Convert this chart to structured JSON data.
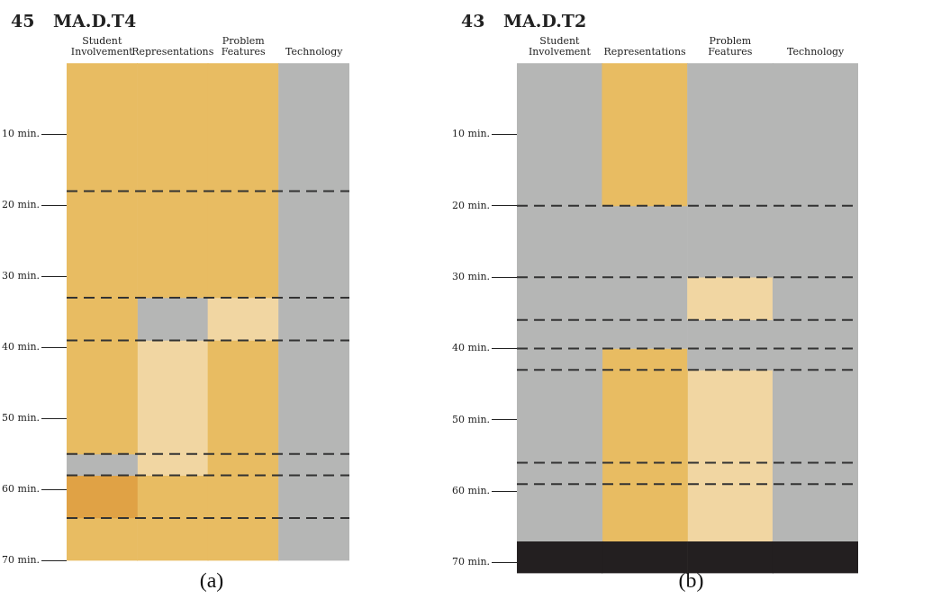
{
  "chart_data": [
    {
      "type": "bar",
      "title": "45 MA.D.T4",
      "stacked": true,
      "categories": [
        "Student Involvement",
        "Representations",
        "Problem Features",
        "Technology"
      ],
      "series": [
        {
          "values": [
            55,
            33,
            33,
            70
          ],
          "colors": [
            "#e8bc62",
            "#e8bc62",
            "#e8bc62",
            "#b5b6b5"
          ]
        },
        {
          "values": [
            3,
            6,
            6,
            null
          ],
          "colors": [
            "#b5b6b5",
            "#b5b6b5",
            "#f1d6a2",
            null
          ]
        },
        {
          "values": [
            6,
            19,
            31,
            null
          ],
          "colors": [
            "#e0a245",
            "#f1d6a2",
            "#e8bc62",
            null
          ]
        },
        {
          "values": [
            6,
            12,
            null,
            null
          ],
          "colors": [
            "#e8bc62",
            "#e8bc62",
            null,
            null
          ]
        }
      ],
      "ylim": [
        70,
        0
      ],
      "yticks": [
        {
          "value": 10,
          "label": "10 min."
        },
        {
          "value": 20,
          "label": "20 min."
        },
        {
          "value": 30,
          "label": "30 min."
        },
        {
          "value": 40,
          "label": "40 min."
        },
        {
          "value": 50,
          "label": "50 min."
        },
        {
          "value": 60,
          "label": "60 min."
        },
        {
          "value": 70,
          "label": "70 min."
        }
      ],
      "ref_lines": [
        {
          "axis": "y",
          "value": 18,
          "color": "#333333",
          "line_style": "dashed"
        },
        {
          "axis": "y",
          "value": 33,
          "color": "#333333",
          "line_style": "dashed"
        },
        {
          "axis": "y",
          "value": 39,
          "color": "#333333",
          "line_style": "dashed"
        },
        {
          "axis": "y",
          "value": 55,
          "color": "#333333",
          "line_style": "dashed"
        },
        {
          "axis": "y",
          "value": 58,
          "color": "#333333",
          "line_style": "dashed"
        },
        {
          "axis": "y",
          "value": 64,
          "color": "#333333",
          "line_style": "dashed"
        }
      ],
      "annotations": [
        "(a)"
      ]
    },
    {
      "type": "bar",
      "title": "43 MA.D.T2",
      "stacked": true,
      "categories": [
        "Student Involvement",
        "Representations",
        "Problem Features",
        "Technology"
      ],
      "series": [
        {
          "values": [
            67,
            20,
            30,
            67
          ],
          "colors": [
            "#b5b6b5",
            "#e8bc62",
            "#b5b6b5",
            "#b5b6b5"
          ]
        },
        {
          "values": [
            4.5,
            20,
            6,
            4.5
          ],
          "colors": [
            "#231f20",
            "#b5b6b5",
            "#f1d6a2",
            "#231f20"
          ]
        },
        {
          "values": [
            null,
            27,
            7,
            null
          ],
          "colors": [
            null,
            "#e8bc62",
            "#b5b6b5",
            null
          ]
        },
        {
          "values": [
            null,
            4.5,
            24,
            null
          ],
          "colors": [
            null,
            "#231f20",
            "#f1d6a2",
            null
          ]
        },
        {
          "values": [
            null,
            null,
            4.5,
            null
          ],
          "colors": [
            null,
            null,
            "#231f20",
            null
          ]
        }
      ],
      "ylim": [
        71.5,
        0
      ],
      "yticks": [
        {
          "value": 10,
          "label": "10 min."
        },
        {
          "value": 20,
          "label": "20 min."
        },
        {
          "value": 30,
          "label": "30 min."
        },
        {
          "value": 40,
          "label": "40 min."
        },
        {
          "value": 50,
          "label": "50 min."
        },
        {
          "value": 60,
          "label": "60 min."
        },
        {
          "value": 70,
          "label": "70 min."
        }
      ],
      "ref_lines": [
        {
          "axis": "y",
          "value": 20,
          "color": "#333333",
          "line_style": "dashed"
        },
        {
          "axis": "y",
          "value": 30,
          "color": "#333333",
          "line_style": "dashed"
        },
        {
          "axis": "y",
          "value": 36,
          "color": "#333333",
          "line_style": "dashed"
        },
        {
          "axis": "y",
          "value": 40,
          "color": "#333333",
          "line_style": "dashed"
        },
        {
          "axis": "y",
          "value": 43,
          "color": "#333333",
          "line_style": "dashed"
        },
        {
          "axis": "y",
          "value": 56,
          "color": "#333333",
          "line_style": "dashed"
        },
        {
          "axis": "y",
          "value": 59,
          "color": "#333333",
          "line_style": "dashed"
        }
      ],
      "annotations": [
        "(b)"
      ]
    }
  ]
}
